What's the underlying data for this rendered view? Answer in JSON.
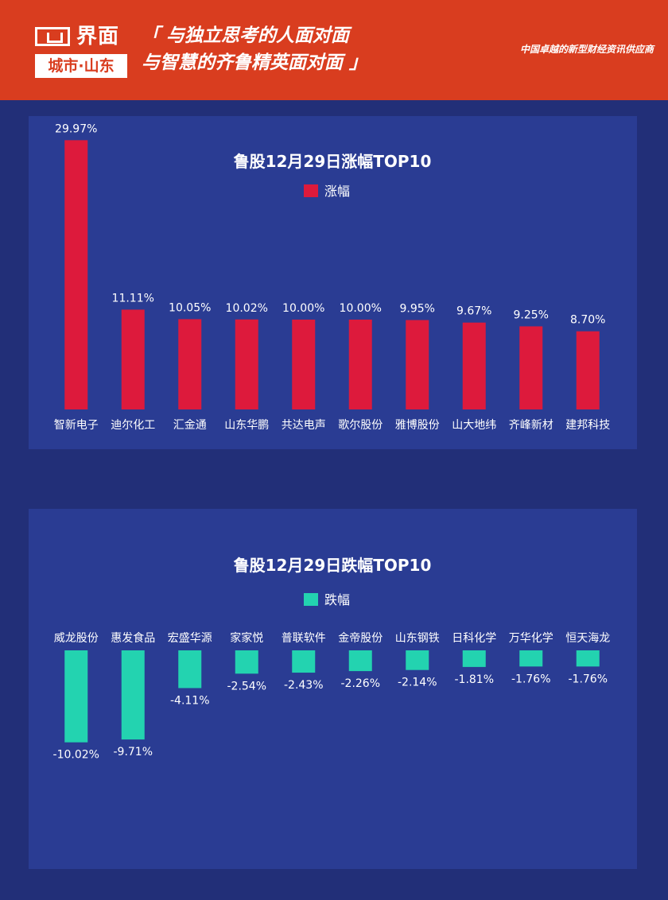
{
  "header": {
    "logo_name": "界面",
    "logo_sub": "城市·山东",
    "slogan_line1": "「 与独立思考的人面对面",
    "slogan_line2": "与智慧的齐鲁精英面对面 」",
    "tagline": "中国卓越的新型财经资讯供应商"
  },
  "colors": {
    "header_bg": "#d93d1f",
    "page_bg": "#222f78",
    "panel_bg": "#2a3c93",
    "gain_bar": "#dd1a3c",
    "loss_bar": "#23d3b0"
  },
  "chart_data": [
    {
      "type": "bar",
      "title": "鲁股12月29日涨幅TOP10",
      "legend": {
        "label": "涨幅",
        "placement": "top-center"
      },
      "categories": [
        "智新电子",
        "迪尔化工",
        "汇金通",
        "山东华鹏",
        "共达电声",
        "歌尔股份",
        "雅博股份",
        "山大地纬",
        "齐峰新材",
        "建邦科技"
      ],
      "values": [
        29.97,
        11.11,
        10.05,
        10.02,
        10.0,
        10.0,
        9.95,
        9.67,
        9.25,
        8.7
      ],
      "value_labels": [
        "29.97%",
        "11.11%",
        "10.05%",
        "10.02%",
        "10.00%",
        "10.00%",
        "9.95%",
        "9.67%",
        "9.25%",
        "8.70%"
      ],
      "ylim": [
        0,
        30
      ],
      "grid": false
    },
    {
      "type": "bar",
      "title": "鲁股12月29日跌幅TOP10",
      "legend": {
        "label": "跌幅",
        "placement": "top-center"
      },
      "categories": [
        "威龙股份",
        "惠发食品",
        "宏盛华源",
        "家家悦",
        "普联软件",
        "金帝股份",
        "山东钢铁",
        "日科化学",
        "万华化学",
        "恒天海龙"
      ],
      "values": [
        -10.02,
        -9.71,
        -4.11,
        -2.54,
        -2.43,
        -2.26,
        -2.14,
        -1.81,
        -1.76,
        -1.76
      ],
      "value_labels": [
        "-10.02%",
        "-9.71%",
        "-4.11%",
        "-2.54%",
        "-2.43%",
        "-2.26%",
        "-2.14%",
        "-1.81%",
        "-1.76%",
        "-1.76%"
      ],
      "ylim": [
        -11,
        0
      ],
      "grid": false
    }
  ]
}
